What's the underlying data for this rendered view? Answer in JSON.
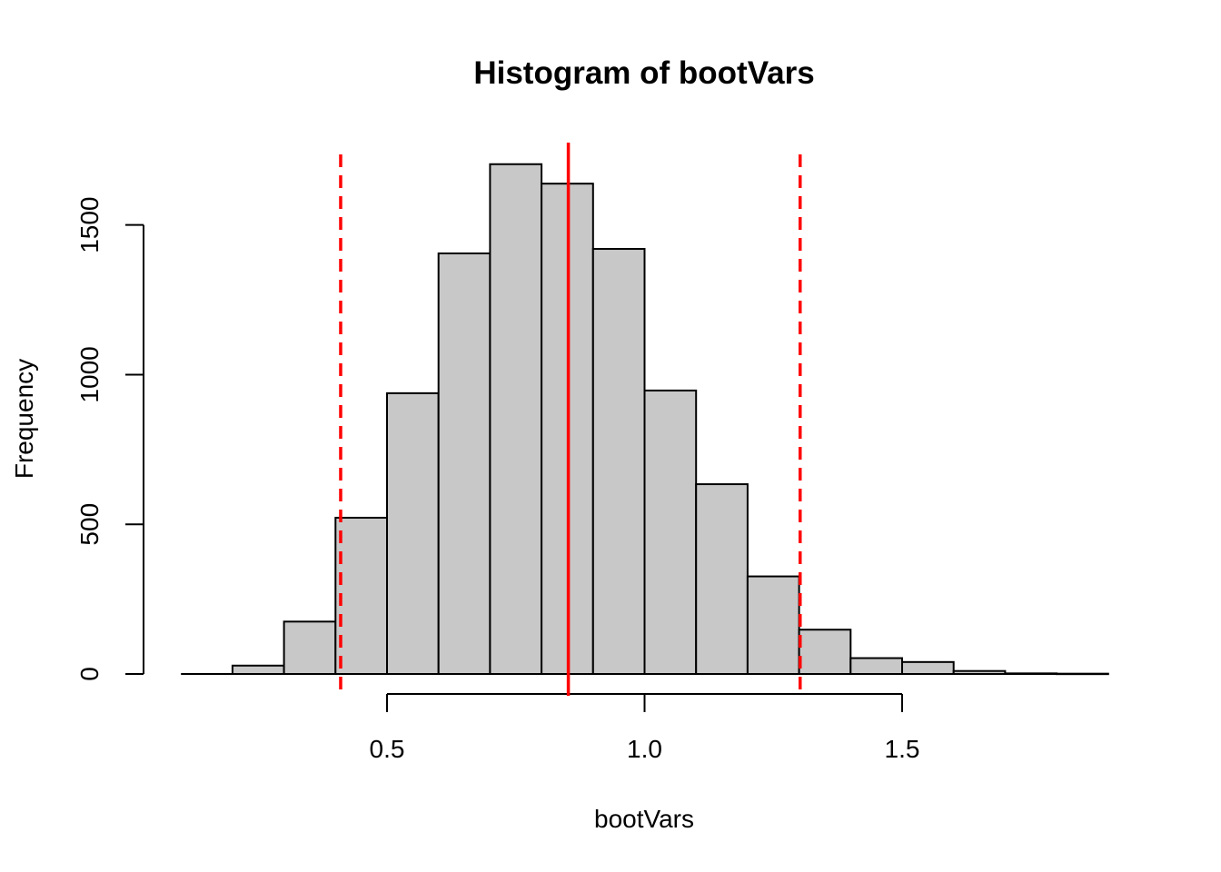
{
  "chart_data": {
    "type": "bar",
    "title": "Histogram of bootVars",
    "xlabel": "bootVars",
    "ylabel": "Frequency",
    "bins": [
      {
        "x0": 0.1,
        "x1": 0.2,
        "count": 0
      },
      {
        "x0": 0.2,
        "x1": 0.3,
        "count": 28
      },
      {
        "x0": 0.3,
        "x1": 0.4,
        "count": 175
      },
      {
        "x0": 0.4,
        "x1": 0.5,
        "count": 522
      },
      {
        "x0": 0.5,
        "x1": 0.6,
        "count": 938
      },
      {
        "x0": 0.6,
        "x1": 0.7,
        "count": 1405
      },
      {
        "x0": 0.7,
        "x1": 0.8,
        "count": 1703
      },
      {
        "x0": 0.8,
        "x1": 0.9,
        "count": 1638
      },
      {
        "x0": 0.9,
        "x1": 1.0,
        "count": 1420
      },
      {
        "x0": 1.0,
        "x1": 1.1,
        "count": 947
      },
      {
        "x0": 1.1,
        "x1": 1.2,
        "count": 634
      },
      {
        "x0": 1.2,
        "x1": 1.3,
        "count": 326
      },
      {
        "x0": 1.3,
        "x1": 1.4,
        "count": 148
      },
      {
        "x0": 1.4,
        "x1": 1.5,
        "count": 53
      },
      {
        "x0": 1.5,
        "x1": 1.6,
        "count": 40
      },
      {
        "x0": 1.6,
        "x1": 1.7,
        "count": 10
      },
      {
        "x0": 1.7,
        "x1": 1.8,
        "count": 2
      },
      {
        "x0": 1.8,
        "x1": 1.9,
        "count": 1
      }
    ],
    "xlim": [
      0.1,
      1.9
    ],
    "ylim": [
      0,
      1700
    ],
    "xticks": [
      {
        "value": 0.5,
        "label": "0.5"
      },
      {
        "value": 1.0,
        "label": "1.0"
      },
      {
        "value": 1.5,
        "label": "1.5"
      }
    ],
    "yticks": [
      {
        "value": 0,
        "label": "0"
      },
      {
        "value": 500,
        "label": "500"
      },
      {
        "value": 1000,
        "label": "1000"
      },
      {
        "value": 1500,
        "label": "1500"
      }
    ],
    "reference_lines": [
      {
        "value": 0.852,
        "style": "solid",
        "color": "#ff0000"
      },
      {
        "value": 0.41,
        "style": "dashed",
        "color": "#ff0000"
      },
      {
        "value": 1.302,
        "style": "dashed",
        "color": "#ff0000"
      }
    ],
    "bar_fill": "#c8c8c8",
    "bar_stroke": "#000000",
    "grid": false,
    "legend": "none"
  }
}
